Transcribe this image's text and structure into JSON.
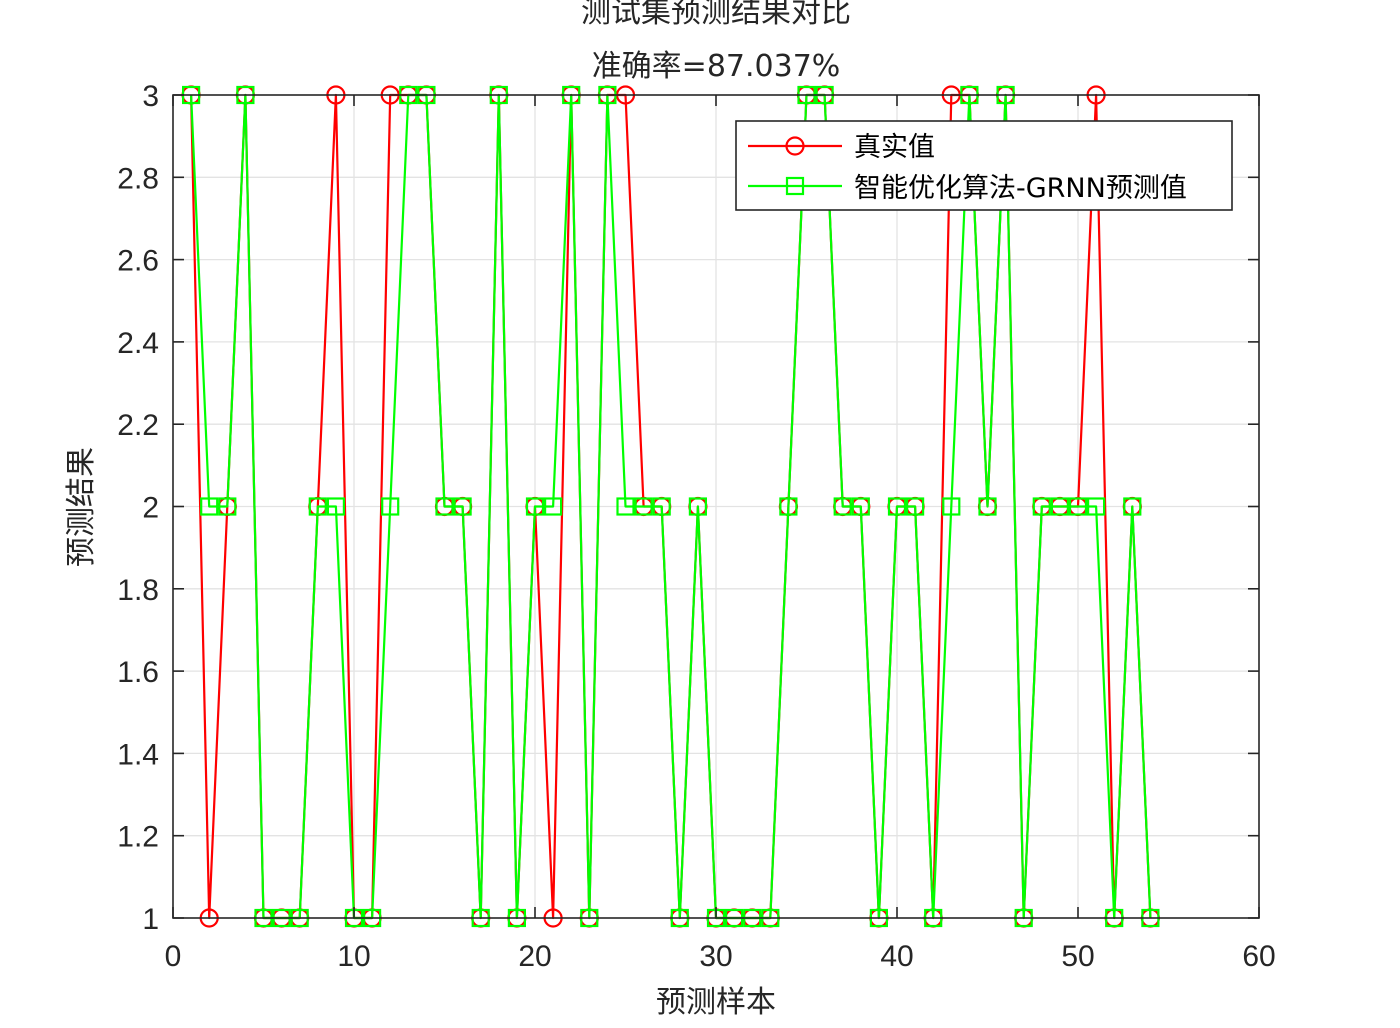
{
  "chart_data": {
    "type": "line",
    "title": "测试集预测结果对比",
    "subtitle": "准确率=87.037%",
    "xlabel": "预测样本",
    "ylabel": "预测结果",
    "xlim": [
      0,
      60
    ],
    "ylim": [
      1,
      3
    ],
    "xticks": [
      0,
      10,
      20,
      30,
      40,
      50,
      60
    ],
    "yticks": [
      1,
      1.2,
      1.4,
      1.6,
      1.8,
      2,
      2.2,
      2.4,
      2.6,
      2.8,
      3
    ],
    "grid": true,
    "legend_position": "top-right",
    "x": [
      1,
      2,
      3,
      4,
      5,
      6,
      7,
      8,
      9,
      10,
      11,
      12,
      13,
      14,
      15,
      16,
      17,
      18,
      19,
      20,
      21,
      22,
      23,
      24,
      25,
      26,
      27,
      28,
      29,
      30,
      31,
      32,
      33,
      34,
      35,
      36,
      37,
      38,
      39,
      40,
      41,
      42,
      43,
      44,
      45,
      46,
      47,
      48,
      49,
      50,
      51,
      52,
      53,
      54
    ],
    "series": [
      {
        "name": "真实值",
        "color": "#ff0000",
        "marker": "circle",
        "values": [
          3,
          1,
          2,
          3,
          1,
          1,
          1,
          2,
          3,
          1,
          1,
          3,
          3,
          3,
          2,
          2,
          1,
          3,
          1,
          2,
          1,
          3,
          1,
          3,
          3,
          2,
          2,
          1,
          2,
          1,
          1,
          1,
          1,
          2,
          3,
          3,
          2,
          2,
          1,
          2,
          2,
          1,
          3,
          3,
          2,
          3,
          1,
          2,
          2,
          2,
          3,
          1,
          2,
          1
        ]
      },
      {
        "name": "智能优化算法-GRNN预测值",
        "color": "#00ff00",
        "marker": "square",
        "values": [
          3,
          2,
          2,
          3,
          1,
          1,
          1,
          2,
          2,
          1,
          1,
          2,
          3,
          3,
          2,
          2,
          1,
          3,
          1,
          2,
          2,
          3,
          1,
          3,
          2,
          2,
          2,
          1,
          2,
          1,
          1,
          1,
          1,
          2,
          3,
          3,
          2,
          2,
          1,
          2,
          2,
          1,
          2,
          3,
          2,
          3,
          1,
          2,
          2,
          2,
          2,
          1,
          2,
          1
        ]
      }
    ]
  }
}
